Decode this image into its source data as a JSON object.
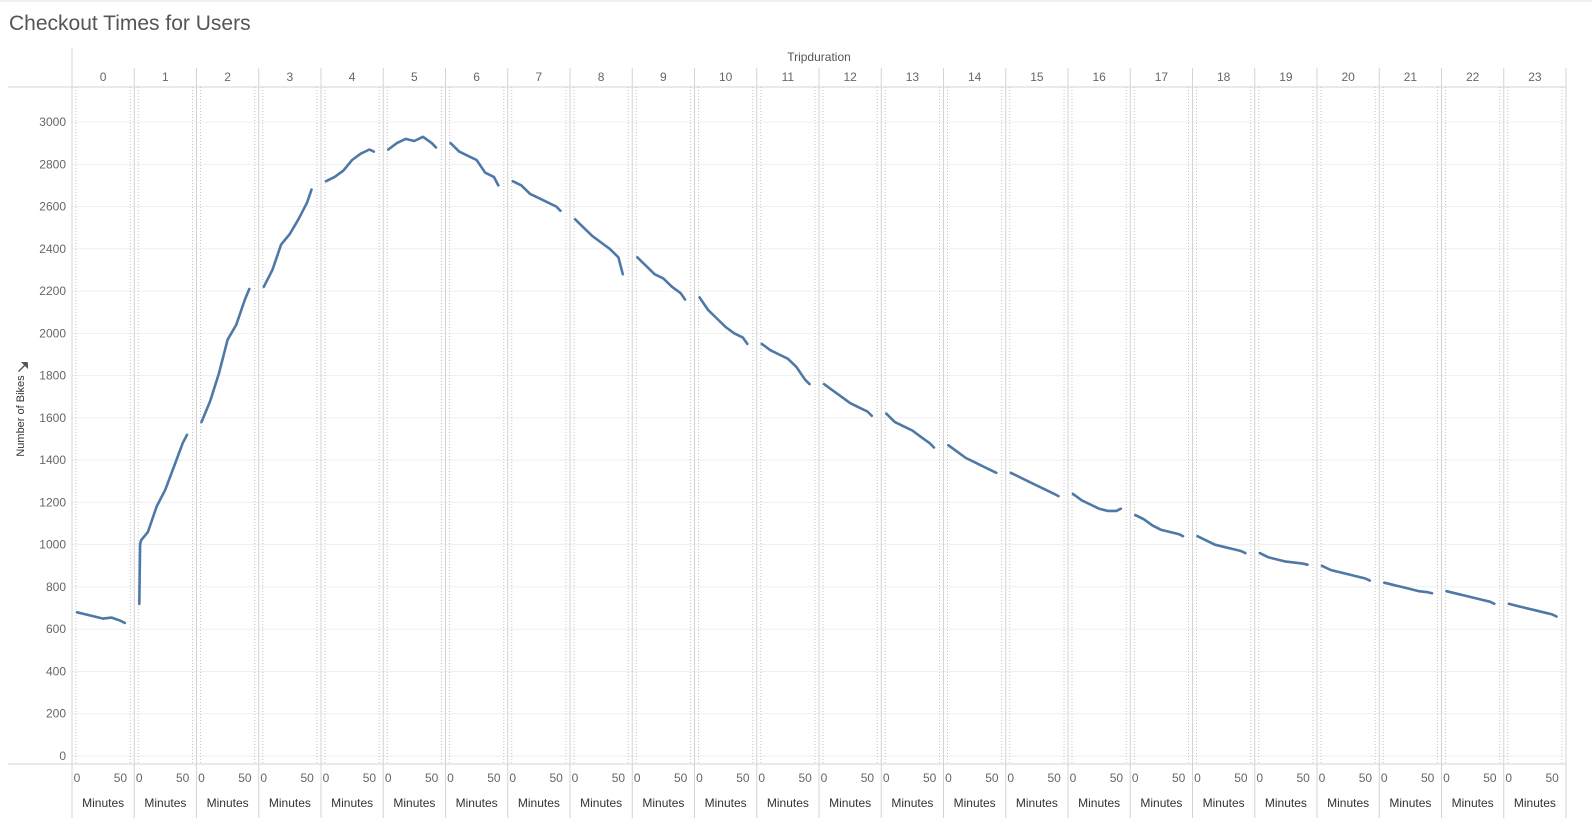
{
  "title": "Checkout Times for Users",
  "colors": {
    "line": "#4e79a7",
    "grid": "#efefef",
    "divider": "#d4d4d4",
    "dotted": "#c4c4c4",
    "text": "#555555"
  },
  "chart_data": {
    "type": "line",
    "title": "Checkout Times for Users",
    "column_header": "Tripduration",
    "ylabel": "Number of Bikes",
    "ylabel_icon": "pin-icon",
    "xlabel": "Minutes",
    "ylim": [
      0,
      3000
    ],
    "yticks": [
      0,
      200,
      400,
      600,
      800,
      1000,
      1200,
      1400,
      1600,
      1800,
      2000,
      2200,
      2400,
      2600,
      2800,
      3000
    ],
    "minute_ticks": [
      0,
      50
    ],
    "minute_range": [
      0,
      59
    ],
    "hours": [
      0,
      1,
      2,
      3,
      4,
      5,
      6,
      7,
      8,
      9,
      10,
      11,
      12,
      13,
      14,
      15,
      16,
      17,
      18,
      19,
      20,
      21,
      22,
      23
    ],
    "series": [
      {
        "panels": [
          {
            "hour": 0,
            "minutes": [
              0,
              10,
              20,
              30,
              40,
              50,
              55
            ],
            "values": [
              680,
              670,
              660,
              650,
              655,
              640,
              630
            ]
          },
          {
            "hour": 1,
            "minutes": [
              0,
              1,
              2,
              10,
              20,
              30,
              40,
              50,
              55
            ],
            "values": [
              720,
              1000,
              1020,
              1060,
              1180,
              1260,
              1370,
              1480,
              1520
            ]
          },
          {
            "hour": 2,
            "minutes": [
              0,
              10,
              20,
              30,
              40,
              50,
              55
            ],
            "values": [
              1580,
              1680,
              1810,
              1970,
              2040,
              2160,
              2210
            ]
          },
          {
            "hour": 3,
            "minutes": [
              0,
              10,
              20,
              30,
              40,
              50,
              55
            ],
            "values": [
              2220,
              2300,
              2420,
              2470,
              2540,
              2620,
              2680
            ]
          },
          {
            "hour": 4,
            "minutes": [
              0,
              10,
              20,
              30,
              40,
              50,
              55
            ],
            "values": [
              2720,
              2740,
              2770,
              2820,
              2850,
              2870,
              2860
            ]
          },
          {
            "hour": 5,
            "minutes": [
              0,
              10,
              20,
              30,
              40,
              50,
              55
            ],
            "values": [
              2870,
              2900,
              2920,
              2910,
              2930,
              2900,
              2880
            ]
          },
          {
            "hour": 6,
            "minutes": [
              0,
              10,
              20,
              30,
              40,
              50,
              55
            ],
            "values": [
              2900,
              2860,
              2840,
              2820,
              2760,
              2740,
              2700
            ]
          },
          {
            "hour": 7,
            "minutes": [
              0,
              10,
              20,
              30,
              40,
              50,
              55
            ],
            "values": [
              2720,
              2700,
              2660,
              2640,
              2620,
              2600,
              2580
            ]
          },
          {
            "hour": 8,
            "minutes": [
              0,
              10,
              20,
              30,
              40,
              50,
              55
            ],
            "values": [
              2540,
              2500,
              2460,
              2430,
              2400,
              2360,
              2280
            ]
          },
          {
            "hour": 9,
            "minutes": [
              0,
              10,
              20,
              30,
              40,
              50,
              55
            ],
            "values": [
              2360,
              2320,
              2280,
              2260,
              2220,
              2190,
              2160
            ]
          },
          {
            "hour": 10,
            "minutes": [
              0,
              10,
              20,
              30,
              40,
              50,
              55
            ],
            "values": [
              2170,
              2110,
              2070,
              2030,
              2000,
              1980,
              1950
            ]
          },
          {
            "hour": 11,
            "minutes": [
              0,
              10,
              20,
              30,
              40,
              50,
              55
            ],
            "values": [
              1950,
              1920,
              1900,
              1880,
              1840,
              1780,
              1760
            ]
          },
          {
            "hour": 12,
            "minutes": [
              0,
              10,
              20,
              30,
              40,
              50,
              55
            ],
            "values": [
              1760,
              1730,
              1700,
              1670,
              1650,
              1630,
              1610
            ]
          },
          {
            "hour": 13,
            "minutes": [
              0,
              10,
              20,
              30,
              40,
              50,
              55
            ],
            "values": [
              1620,
              1580,
              1560,
              1540,
              1510,
              1480,
              1460
            ]
          },
          {
            "hour": 14,
            "minutes": [
              0,
              10,
              20,
              30,
              40,
              50,
              55
            ],
            "values": [
              1470,
              1440,
              1410,
              1390,
              1370,
              1350,
              1340
            ]
          },
          {
            "hour": 15,
            "minutes": [
              0,
              10,
              20,
              30,
              40,
              50,
              55
            ],
            "values": [
              1340,
              1320,
              1300,
              1280,
              1260,
              1240,
              1230
            ]
          },
          {
            "hour": 16,
            "minutes": [
              0,
              10,
              20,
              30,
              40,
              50,
              55
            ],
            "values": [
              1240,
              1210,
              1190,
              1170,
              1160,
              1160,
              1170
            ]
          },
          {
            "hour": 17,
            "minutes": [
              0,
              10,
              20,
              30,
              40,
              50,
              55
            ],
            "values": [
              1140,
              1120,
              1090,
              1070,
              1060,
              1050,
              1040
            ]
          },
          {
            "hour": 18,
            "minutes": [
              0,
              10,
              20,
              30,
              40,
              50,
              55
            ],
            "values": [
              1040,
              1020,
              1000,
              990,
              980,
              970,
              960
            ]
          },
          {
            "hour": 19,
            "minutes": [
              0,
              10,
              20,
              30,
              40,
              50,
              55
            ],
            "values": [
              960,
              940,
              930,
              920,
              915,
              910,
              905
            ]
          },
          {
            "hour": 20,
            "minutes": [
              0,
              10,
              20,
              30,
              40,
              50,
              55
            ],
            "values": [
              900,
              880,
              870,
              860,
              850,
              840,
              830
            ]
          },
          {
            "hour": 21,
            "minutes": [
              0,
              10,
              20,
              30,
              40,
              50,
              55
            ],
            "values": [
              820,
              810,
              800,
              790,
              780,
              775,
              770
            ]
          },
          {
            "hour": 22,
            "minutes": [
              0,
              10,
              20,
              30,
              40,
              50,
              55
            ],
            "values": [
              780,
              770,
              760,
              750,
              740,
              730,
              720
            ]
          },
          {
            "hour": 23,
            "minutes": [
              0,
              10,
              20,
              30,
              40,
              50,
              55
            ],
            "values": [
              720,
              710,
              700,
              690,
              680,
              670,
              660
            ]
          }
        ]
      }
    ],
    "grid": true,
    "legend": "none"
  }
}
